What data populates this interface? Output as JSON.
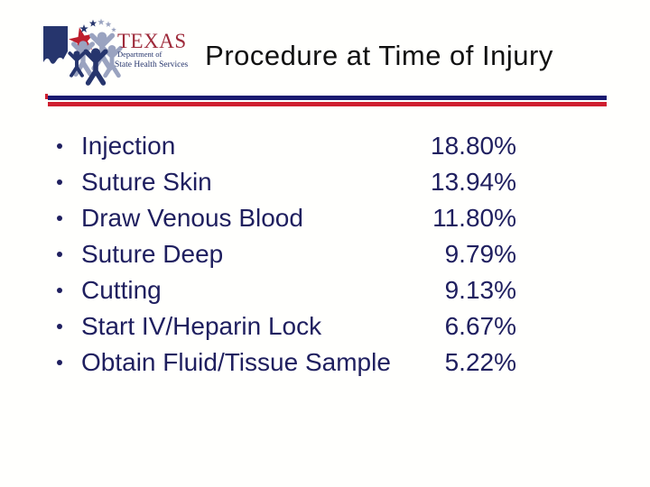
{
  "slide": {
    "title": "Procedure at Time of Injury",
    "logo": {
      "brand": "TEXAS",
      "dept_line": "Department of",
      "services_line": "State Health Services"
    },
    "procedures": [
      {
        "label": "Injection",
        "value": "18.80%"
      },
      {
        "label": "Suture Skin",
        "value": "13.94%"
      },
      {
        "label": "Draw Venous Blood",
        "value": "11.80%"
      },
      {
        "label": "Suture Deep",
        "value": "9.79%"
      },
      {
        "label": "Cutting",
        "value": "9.13%"
      },
      {
        "label": "Start IV/Heparin Lock",
        "value": "6.67%"
      },
      {
        "label": "Obtain Fluid/Tissue Sample",
        "value": "5.22%"
      }
    ],
    "colors": {
      "list_text_navy": "#1f1f5f",
      "divider_navy": "#1a1a70",
      "divider_red": "#cf1e2f",
      "logo_navy": "#26356d",
      "logo_gray": "#9aa3c0",
      "logo_star_red": "#be1e2d",
      "logo_texas_red": "#9e2a3a",
      "title_black": "#111111"
    }
  },
  "chart_data": {
    "type": "table",
    "title": "Procedure at Time of Injury",
    "categories": [
      "Injection",
      "Suture Skin",
      "Draw Venous Blood",
      "Suture Deep",
      "Cutting",
      "Start IV/Heparin Lock",
      "Obtain Fluid/Tissue Sample"
    ],
    "values": [
      18.8,
      13.94,
      11.8,
      9.79,
      9.13,
      6.67,
      5.22
    ],
    "unit": "%"
  }
}
